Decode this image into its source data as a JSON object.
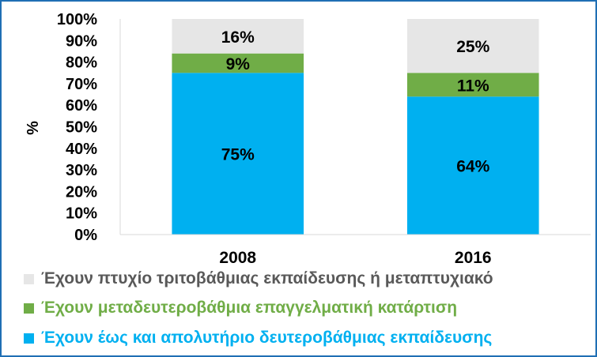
{
  "chart_data": {
    "type": "bar",
    "stacked": true,
    "categories": [
      "2008",
      "2016"
    ],
    "series": [
      {
        "name": "Έχουν έως και απολυτήριο δευτεροβάθμιας εκπαίδευσης",
        "values": [
          75,
          64
        ],
        "labels": [
          "75%",
          "64%"
        ],
        "color": "#00b0f0"
      },
      {
        "name": "Έχουν μεταδευτεροβάθμια επαγγελματική  κατάρτιση",
        "values": [
          9,
          11
        ],
        "labels": [
          "9%",
          "11%"
        ],
        "color": "#70ad47"
      },
      {
        "name": "Έχουν πτυχίο τριτοβάθμιας εκπαίδευσης ή μεταπτυχιακό",
        "values": [
          16,
          25
        ],
        "labels": [
          "16%",
          "25%"
        ],
        "color": "#e6e6e6"
      }
    ],
    "ylabel": "%",
    "ylim": [
      0,
      100
    ],
    "yticks": [
      "0%",
      "10%",
      "20%",
      "30%",
      "40%",
      "50%",
      "60%",
      "70%",
      "80%",
      "90%",
      "100%"
    ],
    "grid": false,
    "legend_position": "bottom"
  },
  "legend": {
    "item1": {
      "label": "Έχουν πτυχίο τριτοβάθμιας εκπαίδευσης ή μεταπτυχιακό",
      "color": "#e6e6e6",
      "text_color": "#595959"
    },
    "item2": {
      "label": "Έχουν μεταδευτεροβάθμια επαγγελματική  κατάρτιση",
      "color": "#70ad47",
      "text_color": "#70ad47"
    },
    "item3": {
      "label": "Έχουν έως και απολυτήριο δευτεροβάθμιας εκπαίδευσης",
      "color": "#00b0f0",
      "text_color": "#00b0f0"
    }
  }
}
